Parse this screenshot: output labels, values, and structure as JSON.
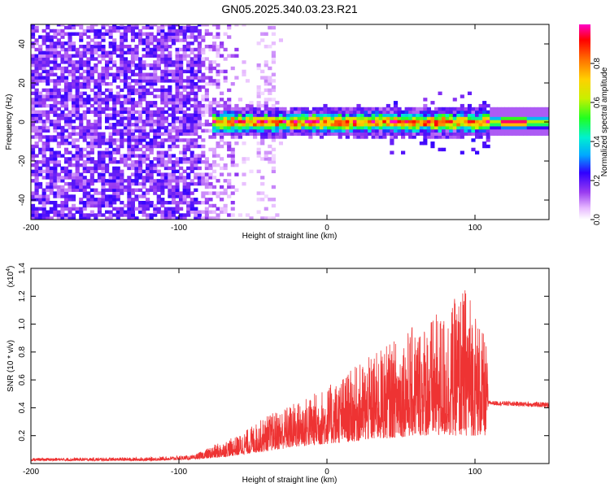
{
  "title": "GN05.2025.340.03.23.R21",
  "chart_data": [
    {
      "type": "heatmap",
      "xlabel": "Height of straight line (km)",
      "ylabel": "Frequency (Hz)",
      "xlim": [
        -200,
        150
      ],
      "ylim": [
        -50,
        50
      ],
      "xticks": [
        -200,
        -100,
        0,
        100
      ],
      "yticks": [
        -40,
        -20,
        0,
        20,
        40
      ],
      "colorbar": {
        "label": "Normalized spectral amplitude",
        "range": [
          0,
          1
        ],
        "ticks": [
          0.0,
          0.2,
          0.4,
          0.6,
          0.8
        ],
        "colors": [
          "#ffffff",
          "#e6b8ff",
          "#9a3cf0",
          "#3000ff",
          "#00a8ff",
          "#00f0d0",
          "#20ff20",
          "#c8f000",
          "#ffd000",
          "#ff7000",
          "#ff0000",
          "#ff00c8"
        ]
      },
      "description_regions": {
        "noise_x_range": [
          -200,
          -60
        ],
        "signal_x_range": [
          -80,
          150
        ],
        "signal_center_hz": 0,
        "signal_halfwidth_hz": 5
      }
    },
    {
      "type": "line",
      "xlabel": "Height of straight line (km)",
      "ylabel": "SNR (10 * v/v)",
      "yscale_label": "(x10",
      "yscale_exp": "4",
      "xlim": [
        -200,
        150
      ],
      "ylim": [
        0,
        1.4
      ],
      "xticks": [
        -200,
        -100,
        0,
        100
      ],
      "yticks": [
        0.2,
        0.4,
        0.6,
        0.8,
        1.0,
        1.2,
        1.4
      ],
      "color": "#ee3333",
      "envelope": {
        "x": [
          -200,
          -120,
          -90,
          -75,
          -60,
          -40,
          -20,
          0,
          20,
          40,
          60,
          80,
          95,
          108,
          109,
          150
        ],
        "low": [
          0.02,
          0.02,
          0.03,
          0.04,
          0.06,
          0.09,
          0.12,
          0.14,
          0.16,
          0.18,
          0.2,
          0.2,
          0.2,
          0.2,
          0.42,
          0.4
        ],
        "high": [
          0.04,
          0.045,
          0.06,
          0.14,
          0.2,
          0.35,
          0.45,
          0.55,
          0.7,
          0.85,
          1.0,
          1.1,
          1.3,
          0.85,
          0.45,
          0.44
        ]
      }
    }
  ]
}
